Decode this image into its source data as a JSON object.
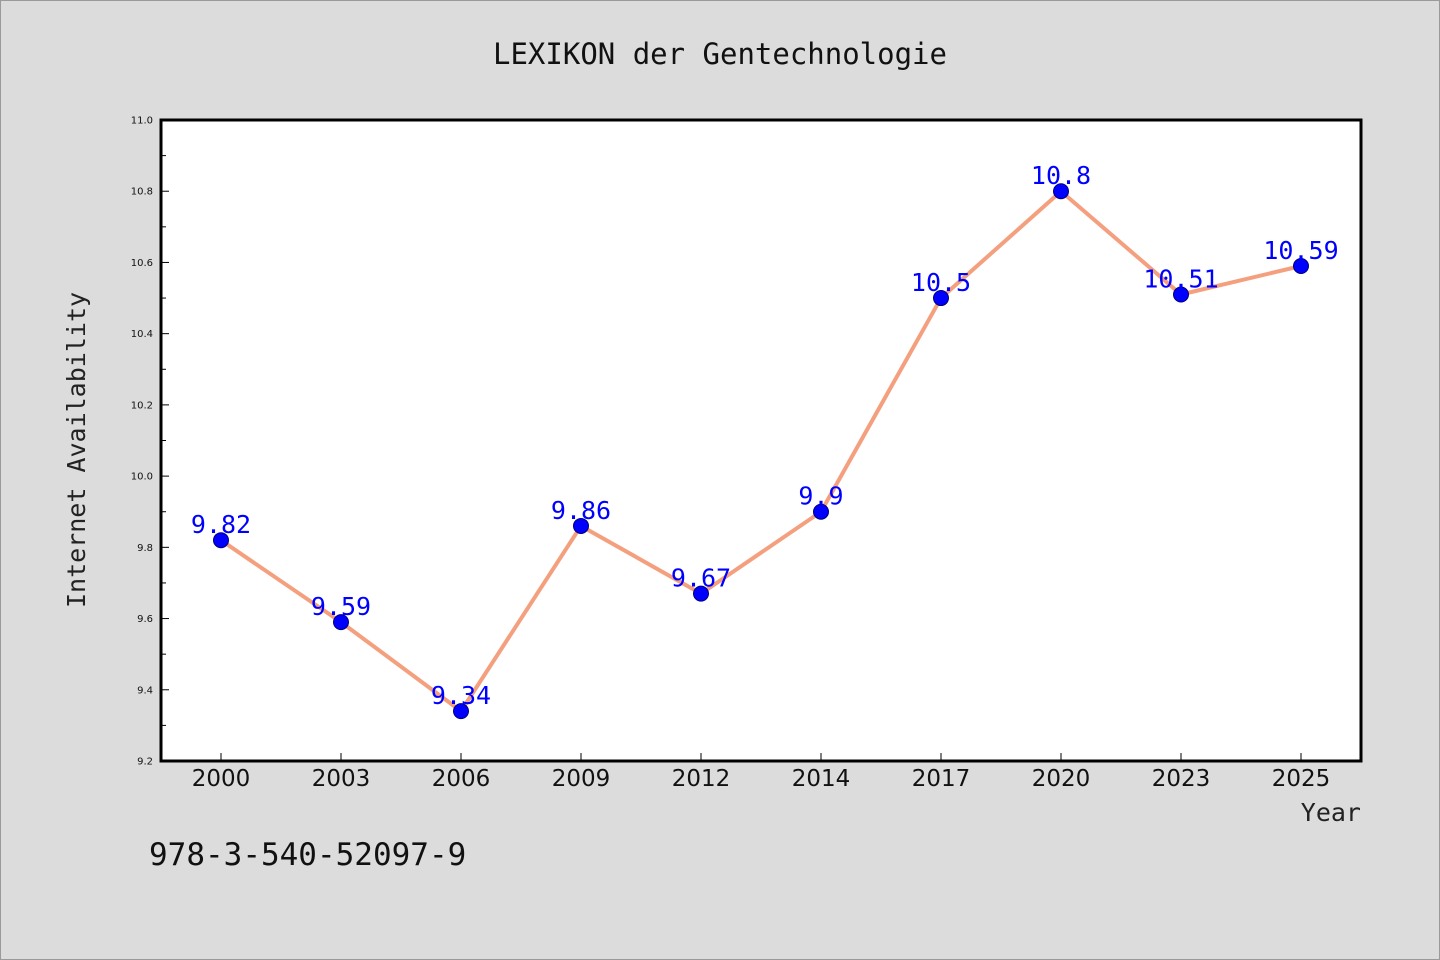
{
  "chart_data": {
    "type": "line",
    "title": "LEXIKON der Gentechnologie",
    "xlabel": "Year",
    "ylabel": "Internet Availability",
    "categories": [
      "2000",
      "2003",
      "2006",
      "2009",
      "2012",
      "2014",
      "2017",
      "2020",
      "2023",
      "2025"
    ],
    "series": [
      {
        "values": [
          9.82,
          9.59,
          9.34,
          9.86,
          9.67,
          9.9,
          10.5,
          10.8,
          10.51,
          10.59
        ],
        "data_labels": [
          "9.82",
          "9.59",
          "9.34",
          "9.86",
          "9.67",
          "9.9",
          "10.5",
          "10.8",
          "10.51",
          "10.59"
        ],
        "line_color": "#f4a07e",
        "marker_color": "#0000ff"
      }
    ],
    "ylim": [
      9.2,
      11.0
    ],
    "yticks": [
      "9.2",
      "9.4",
      "9.6",
      "9.8",
      "10.0",
      "10.2",
      "10.4",
      "10.6",
      "10.8",
      "11.0"
    ],
    "grid": false,
    "legend": "none"
  },
  "footer": {
    "isbn": "978-3-540-52097-9"
  },
  "colors": {
    "figure_background": "#dcdcdc",
    "plot_background": "#ffffff",
    "label_color": "#0000ff"
  }
}
